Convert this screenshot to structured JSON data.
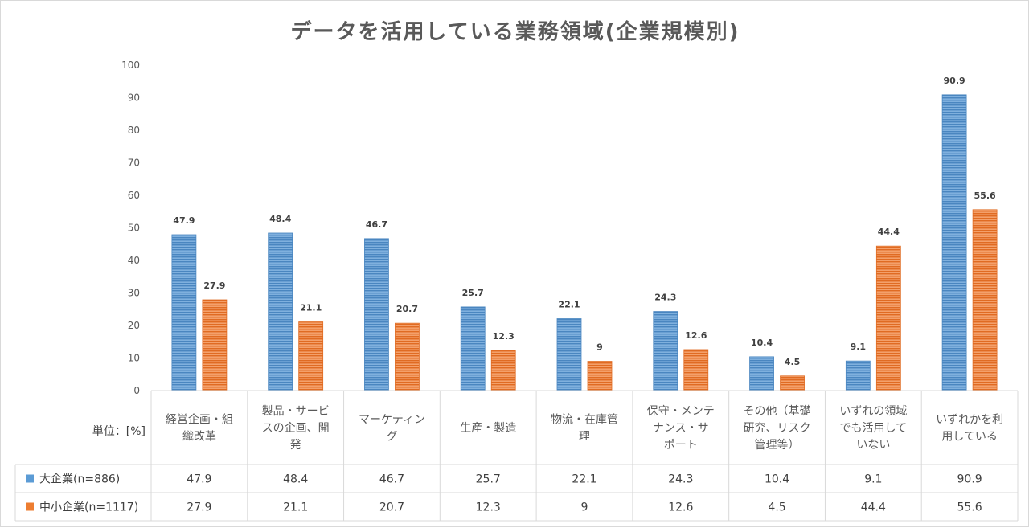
{
  "chart_data": {
    "type": "bar",
    "title": "データを活用している業務領域(企業規模別)",
    "unit_label": "単位：[%]",
    "ylim": [
      0,
      100
    ],
    "yticks": [
      0,
      10,
      20,
      30,
      40,
      50,
      60,
      70,
      80,
      90,
      100
    ],
    "grid": false,
    "categories": [
      [
        "経営企画・組",
        "織改革"
      ],
      [
        "製品・サービ",
        "スの企画、開",
        "発"
      ],
      [
        "マーケティン",
        "グ"
      ],
      [
        "生産・製造"
      ],
      [
        "物流・在庫管",
        "理"
      ],
      [
        "保守・メンテ",
        "ナンス・サ",
        "ポート"
      ],
      [
        "その他（基礎",
        "研究、リスク",
        "管理等）"
      ],
      [
        "いずれの領域",
        "でも活用して",
        "いない"
      ],
      [
        "いずれかを利",
        "用している"
      ]
    ],
    "series": [
      {
        "name": "大企業(n=886)",
        "color": "#5b9bd5",
        "values": [
          47.9,
          48.4,
          46.7,
          25.7,
          22.1,
          24.3,
          10.4,
          9.1,
          90.9
        ],
        "labels": [
          "47.9",
          "48.4",
          "46.7",
          "25.7",
          "22.1",
          "24.3",
          "10.4",
          "9.1",
          "90.9"
        ]
      },
      {
        "name": "中小企業(n=1117)",
        "color": "#ed7d31",
        "values": [
          27.9,
          21.1,
          20.7,
          12.3,
          9,
          12.6,
          4.5,
          44.4,
          55.6
        ],
        "labels": [
          "27.9",
          "21.1",
          "20.7",
          "12.3",
          "9",
          "12.6",
          "4.5",
          "44.4",
          "55.6"
        ]
      }
    ]
  }
}
